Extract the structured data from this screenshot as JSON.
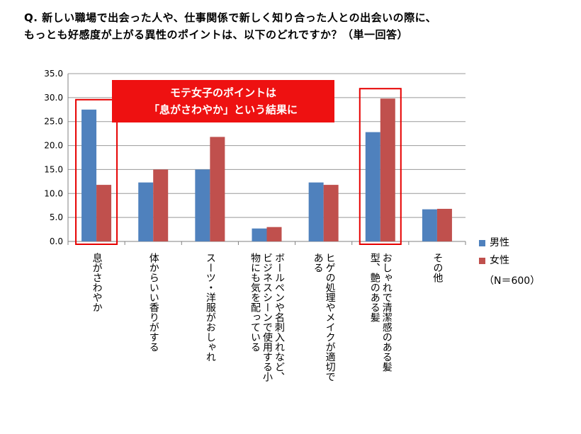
{
  "question": {
    "line1": "Q.  新しい職場で出会った人や、仕事関係で新しく知り合った人との出会いの際に、",
    "line2": "もっとも好感度が上がる異性のポイントは、以下のどれですか？（単一回答）"
  },
  "callout": {
    "line1": "モテ女子のポイントは",
    "line2": "「息がさわやか」という結果に"
  },
  "legend": {
    "male": "男性",
    "female": "女性"
  },
  "sample_size": "（N＝600）",
  "colors": {
    "male": "#4f81bd",
    "female": "#c0504d",
    "highlight": "#e60000",
    "callout": "#ee1111",
    "grid": "#999999"
  },
  "chart_data": {
    "type": "bar",
    "categories": [
      "息がさわやか",
      "体からいい香りがする",
      "スーツ・洋服がおしゃれ",
      "ボールペンや名刺入れなど、ビジネスシーンで使用する小物にも気を配っている",
      "ヒゲの処理やメイクが適切である",
      "おしゃれで清潔感のある髪型、艶のある髪",
      "その他"
    ],
    "category_label_lines": [
      [
        "息がさわやか"
      ],
      [
        "体からいい香りがする"
      ],
      [
        "スーツ・洋服がおしゃれ"
      ],
      [
        "ボールペンや名刺入れなど、",
        "ビジネスシーンで使用する小",
        "物にも気を配っている"
      ],
      [
        "ヒゲの処理やメイクが適切で",
        "ある"
      ],
      [
        "おしゃれで清潔感のある髪",
        "型、艶のある髪"
      ],
      [
        "その他"
      ]
    ],
    "series": [
      {
        "name": "男性",
        "values": [
          27.5,
          12.3,
          15.0,
          2.7,
          12.3,
          22.8,
          6.7
        ]
      },
      {
        "name": "女性",
        "values": [
          11.8,
          15.0,
          21.8,
          3.0,
          11.8,
          29.8,
          6.8
        ]
      }
    ],
    "ylim": [
      0,
      35
    ],
    "yticks": [
      "0.0",
      "5.0",
      "10.0",
      "15.0",
      "20.0",
      "25.0",
      "30.0",
      "35.0"
    ],
    "grid": true,
    "legend_position": "right",
    "highlighted_categories": [
      0,
      5
    ]
  }
}
